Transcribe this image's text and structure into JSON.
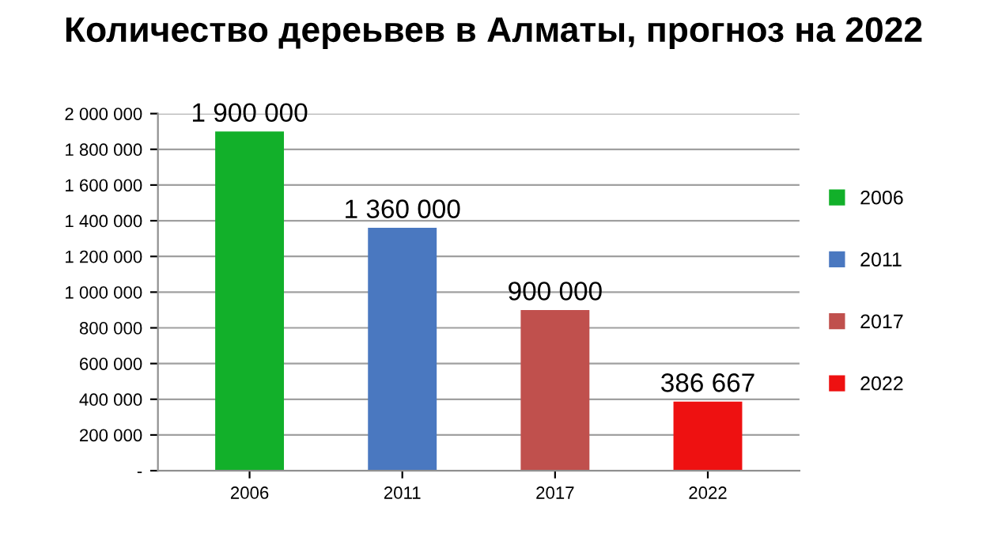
{
  "chart_data": {
    "type": "bar",
    "title": "Количество дереьвев в Алматы, прогноз на 2022",
    "categories": [
      "2006",
      "2011",
      "2017",
      "2022"
    ],
    "series": [
      {
        "name": "2006",
        "color": "#12b02a",
        "values": [
          1900000,
          null,
          null,
          null
        ],
        "value_labels": [
          "1 900 000",
          null,
          null,
          null
        ]
      },
      {
        "name": "2011",
        "color": "#4a78c0",
        "values": [
          null,
          1360000,
          null,
          null
        ],
        "value_labels": [
          null,
          "1 360 000",
          null,
          null
        ]
      },
      {
        "name": "2017",
        "color": "#c0504d",
        "values": [
          null,
          null,
          900000,
          null
        ],
        "value_labels": [
          null,
          null,
          "900 000",
          null
        ]
      },
      {
        "name": "2022",
        "color": "#ee1111",
        "values": [
          null,
          null,
          null,
          386667
        ],
        "value_labels": [
          null,
          null,
          null,
          "386 667"
        ]
      }
    ],
    "ylim": [
      0,
      2000000
    ],
    "yticks": [
      {
        "value": 0,
        "label": "-"
      },
      {
        "value": 200000,
        "label": "200 000"
      },
      {
        "value": 400000,
        "label": "400 000"
      },
      {
        "value": 600000,
        "label": "600 000"
      },
      {
        "value": 800000,
        "label": "800 000"
      },
      {
        "value": 1000000,
        "label": "1 000 000"
      },
      {
        "value": 1200000,
        "label": "1 200 000"
      },
      {
        "value": 1400000,
        "label": "1 400 000"
      },
      {
        "value": 1600000,
        "label": "1 600 000"
      },
      {
        "value": 1800000,
        "label": "1 800 000"
      },
      {
        "value": 2000000,
        "label": "2 000 000"
      }
    ],
    "grid": "y",
    "legend": "right"
  }
}
